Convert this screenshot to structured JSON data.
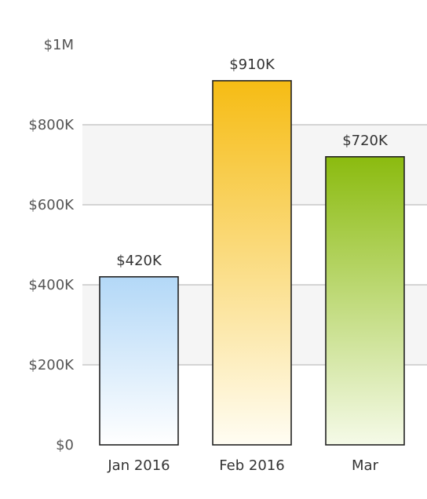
{
  "chart_data": {
    "type": "bar",
    "categories": [
      "Jan 2016",
      "Feb 2016",
      "Mar"
    ],
    "values": [
      420000,
      910000,
      720000
    ],
    "value_labels": [
      "$420K",
      "$910K",
      "$720K"
    ],
    "title": "",
    "xlabel": "",
    "ylabel": "",
    "ylim": [
      0,
      1000000
    ],
    "y_ticks": [
      0,
      200000,
      400000,
      600000,
      800000,
      1000000
    ],
    "y_tick_labels": [
      "$0",
      "$200K",
      "$400K",
      "$600K",
      "$800K",
      "$1M"
    ],
    "grid": true,
    "legend": "none",
    "bar_colors": [
      {
        "top": "#b3d8f7",
        "bottom": "#ffffff"
      },
      {
        "top": "#f6bc14",
        "bottom": "#fffdf3"
      },
      {
        "top": "#8bbb0f",
        "bottom": "#f5fae8"
      }
    ],
    "band_color": "#f5f5f5",
    "grid_color": "#c8c8c8"
  }
}
